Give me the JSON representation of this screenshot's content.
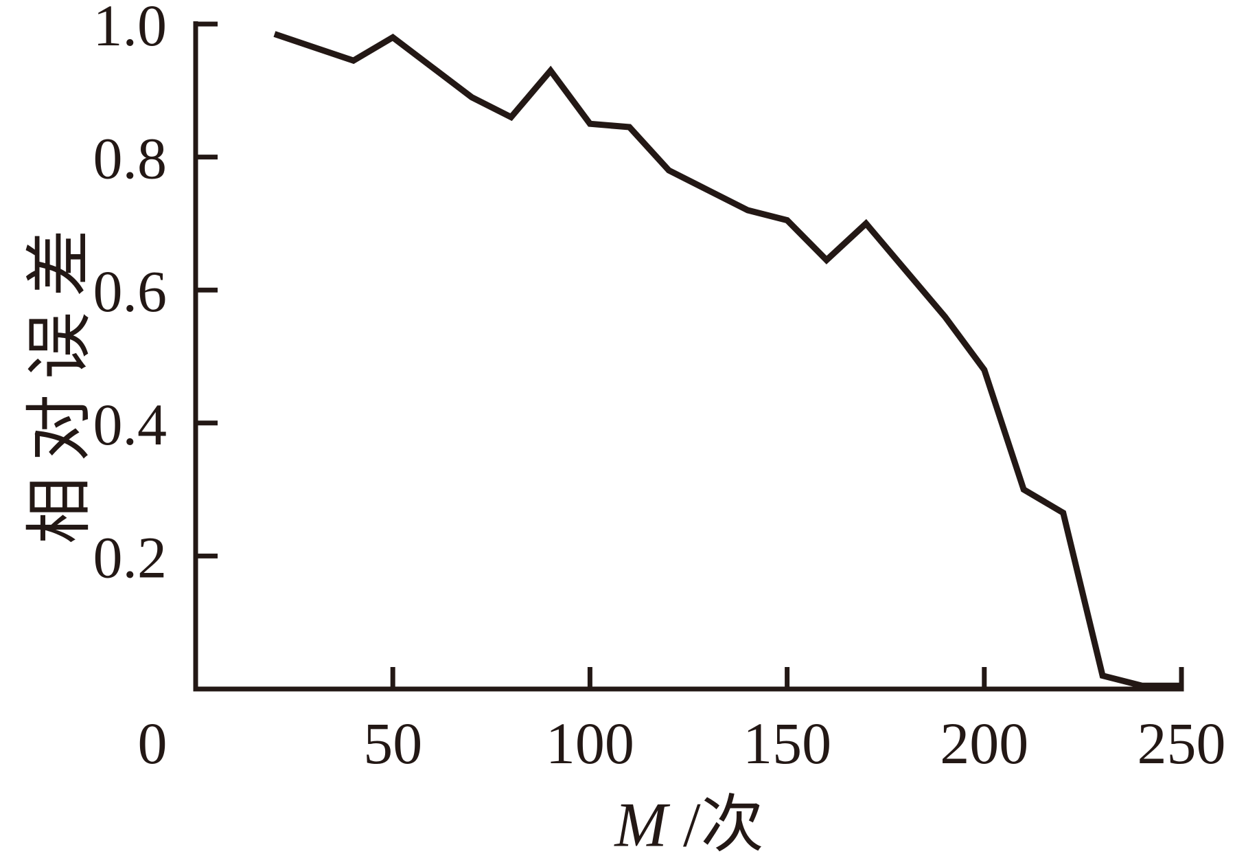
{
  "chart_data": {
    "type": "line",
    "title": "",
    "xlabel": "M /次",
    "xlabel_parts": {
      "variable": "M",
      "rest": " /次"
    },
    "ylabel": "相对误差",
    "x": [
      20,
      30,
      40,
      50,
      60,
      70,
      80,
      90,
      100,
      110,
      120,
      130,
      140,
      150,
      160,
      170,
      180,
      190,
      200,
      210,
      220,
      230,
      240,
      250
    ],
    "y": [
      0.985,
      0.965,
      0.945,
      0.98,
      0.935,
      0.89,
      0.86,
      0.93,
      0.85,
      0.845,
      0.78,
      0.75,
      0.72,
      0.705,
      0.645,
      0.7,
      0.63,
      0.56,
      0.48,
      0.3,
      0.265,
      0.02,
      0.005,
      0.005
    ],
    "xlim": [
      0,
      250
    ],
    "ylim": [
      0,
      1.0
    ],
    "x_ticks": [
      0,
      50,
      100,
      150,
      200,
      250
    ],
    "x_tick_labels": [
      "0",
      "50",
      "100",
      "150",
      "200",
      "250"
    ],
    "y_ticks": [
      1.0,
      0.8,
      0.6,
      0.4,
      0.2
    ],
    "y_tick_labels": [
      "1.0",
      "0.8",
      "0.6",
      "0.4",
      "0.2"
    ],
    "grid": false,
    "legend": null,
    "series_count": 1,
    "line_color": "#231815",
    "axis_color": "#231815"
  }
}
